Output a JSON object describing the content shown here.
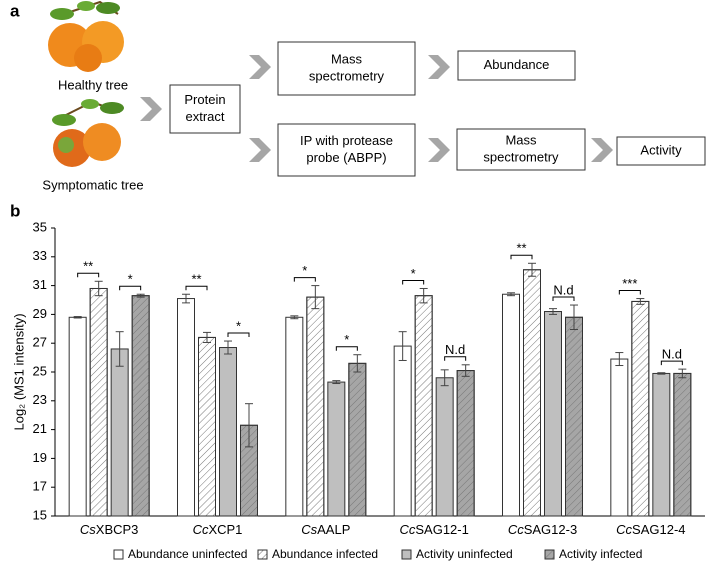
{
  "panel_labels": [
    "a",
    "b"
  ],
  "diagram": {
    "sources": [
      "Healthy tree",
      "Symptomatic tree"
    ],
    "nodes": [
      {
        "lines": [
          "Protein",
          "extract"
        ]
      },
      {
        "lines": [
          "Mass",
          "spectrometry"
        ]
      },
      {
        "lines": [
          "Abundance"
        ]
      },
      {
        "lines": [
          "IP with protease",
          "probe (ABPP)"
        ]
      },
      {
        "lines": [
          "Mass",
          "spectrometry"
        ]
      },
      {
        "lines": [
          "Activity"
        ]
      }
    ]
  },
  "chart_data": {
    "type": "bar",
    "y_label": "Log₂ (MS1 intensity)",
    "categories": [
      "CsXBCP3",
      "CcXCP1",
      "CsAALP",
      "CcSAG12-1",
      "CcSAG12-3",
      "CcSAG12-4"
    ],
    "series": [
      {
        "name": "Abundance uninfected",
        "color": "#ffffff",
        "pattern": "solid",
        "values": [
          28.8,
          30.1,
          28.8,
          26.8,
          30.4,
          25.9
        ],
        "errors": [
          0.05,
          0.3,
          0.1,
          1.0,
          0.1,
          0.45
        ]
      },
      {
        "name": "Abundance infected",
        "color": "#ffffff",
        "pattern": "hatch",
        "values": [
          30.8,
          27.4,
          30.2,
          30.3,
          32.1,
          29.9
        ],
        "errors": [
          0.5,
          0.35,
          0.8,
          0.5,
          0.45,
          0.2
        ]
      },
      {
        "name": "Activity uninfected",
        "color": "#bfbfbf",
        "pattern": "solid",
        "values": [
          26.6,
          26.7,
          24.3,
          24.6,
          29.2,
          24.9
        ],
        "errors": [
          1.2,
          0.45,
          0.1,
          0.55,
          0.2,
          0.05
        ]
      },
      {
        "name": "Activity infected",
        "color": "#a6a6a6",
        "pattern": "hatch",
        "values": [
          30.3,
          21.3,
          25.6,
          25.1,
          28.8,
          24.9
        ],
        "errors": [
          0.1,
          1.5,
          0.6,
          0.4,
          0.85,
          0.3
        ]
      }
    ],
    "significance": [
      [
        "**",
        "*"
      ],
      [
        "**",
        "*"
      ],
      [
        "*",
        "*"
      ],
      [
        "*",
        "N.d"
      ],
      [
        "**",
        "N.d"
      ],
      [
        "***",
        "N.d"
      ]
    ],
    "ylim": [
      15,
      35
    ],
    "yticks": [
      15,
      17,
      19,
      21,
      23,
      25,
      27,
      29,
      31,
      33,
      35
    ],
    "grid": false
  }
}
